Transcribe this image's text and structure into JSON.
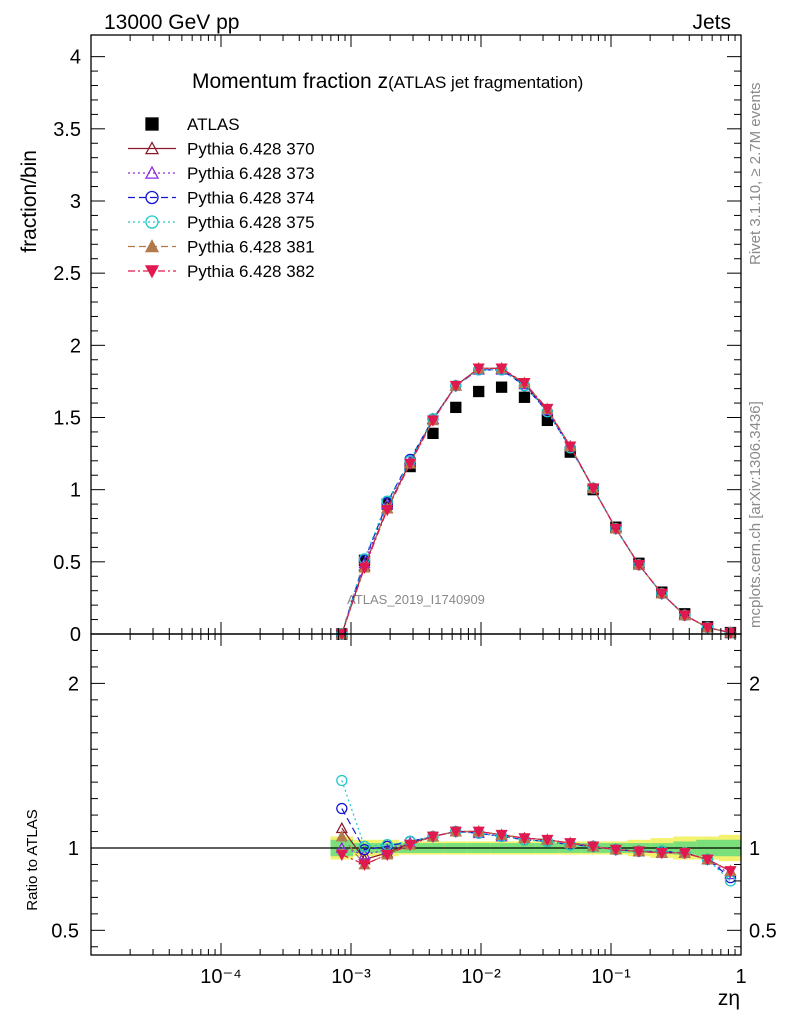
{
  "header": {
    "left": "13000 GeV pp",
    "right": "Jets"
  },
  "side_labels": {
    "rivet": "Rivet 3.1.10, ≥ 2.7M events",
    "mcplots": "mcplots.cern.ch [arXiv:1306.3436]"
  },
  "chart_data": [
    {
      "type": "scatter",
      "panel": "main",
      "title_main": "Momentum fraction z",
      "title_sub": "(ATLAS jet fragmentation)",
      "ylabel": "fraction/bin",
      "xlabel": "zη",
      "watermark": "ATLAS_2019_I1740909",
      "xscale": "log",
      "xlim": [
        1e-05,
        1
      ],
      "ylim": [
        0,
        4.15
      ],
      "x_tick_labels": [
        "10⁻⁴",
        "10⁻³",
        "10⁻²",
        "10⁻¹",
        "1"
      ],
      "y_tick_labels": [
        "0",
        "0.5",
        "1",
        "1.5",
        "2",
        "2.5",
        "3",
        "3.5",
        "4"
      ],
      "legend_position": "top-left",
      "x": [
        0.00085,
        0.00127,
        0.0019,
        0.00285,
        0.00427,
        0.0064,
        0.0096,
        0.0144,
        0.0216,
        0.0324,
        0.0486,
        0.0729,
        0.109,
        0.164,
        0.246,
        0.369,
        0.553,
        0.83
      ],
      "series": [
        {
          "name": "ATLAS",
          "marker": "square-filled",
          "line": "none",
          "color": "#000000",
          "values": [
            0.0,
            0.51,
            0.9,
            1.16,
            1.39,
            1.57,
            1.68,
            1.71,
            1.64,
            1.48,
            1.26,
            1.0,
            0.74,
            0.49,
            0.29,
            0.14,
            0.05,
            0.01
          ]
        },
        {
          "name": "Pythia 6.428 370",
          "marker": "triangle-up-open",
          "line": "solid",
          "color": "#8b1a2b",
          "values": [
            0.0,
            0.47,
            0.87,
            1.19,
            1.49,
            1.72,
            1.84,
            1.84,
            1.73,
            1.55,
            1.3,
            1.01,
            0.73,
            0.48,
            0.28,
            0.13,
            0.045,
            0.009
          ]
        },
        {
          "name": "Pythia 6.428 373",
          "marker": "triangle-up-open",
          "line": "dotted",
          "color": "#8a2be2",
          "values": [
            0.0,
            0.49,
            0.9,
            1.2,
            1.49,
            1.72,
            1.83,
            1.83,
            1.73,
            1.55,
            1.3,
            1.01,
            0.73,
            0.48,
            0.28,
            0.13,
            0.045,
            0.009
          ]
        },
        {
          "name": "Pythia 6.428 374",
          "marker": "circle-open",
          "line": "dashed",
          "color": "#1414d2",
          "values": [
            0.0,
            0.51,
            0.91,
            1.21,
            1.49,
            1.72,
            1.83,
            1.83,
            1.72,
            1.54,
            1.29,
            1.01,
            0.73,
            0.48,
            0.28,
            0.13,
            0.045,
            0.009
          ]
        },
        {
          "name": "Pythia 6.428 375",
          "marker": "circle-open",
          "line": "dotted",
          "color": "#20c8c8",
          "values": [
            0.0,
            0.52,
            0.92,
            1.2,
            1.49,
            1.72,
            1.83,
            1.83,
            1.72,
            1.54,
            1.29,
            1.01,
            0.73,
            0.48,
            0.28,
            0.13,
            0.045,
            0.009
          ]
        },
        {
          "name": "Pythia 6.428 381",
          "marker": "triangle-up-filled",
          "line": "dashed",
          "color": "#b27a4a",
          "values": [
            0.0,
            0.46,
            0.87,
            1.18,
            1.48,
            1.72,
            1.84,
            1.84,
            1.74,
            1.56,
            1.3,
            1.01,
            0.73,
            0.48,
            0.28,
            0.13,
            0.045,
            0.009
          ]
        },
        {
          "name": "Pythia 6.428 382",
          "marker": "triangle-down-filled",
          "line": "dashdot",
          "color": "#e0194e",
          "values": [
            0.0,
            0.46,
            0.86,
            1.18,
            1.48,
            1.72,
            1.84,
            1.84,
            1.74,
            1.56,
            1.3,
            1.01,
            0.73,
            0.48,
            0.28,
            0.13,
            0.045,
            0.009
          ]
        }
      ]
    },
    {
      "type": "line",
      "panel": "ratio",
      "ylabel": "Ratio to ATLAS",
      "xscale": "log",
      "xlim": [
        1e-05,
        1
      ],
      "ylim": [
        0.35,
        2.3
      ],
      "y_tick_labels": [
        "0.5",
        "1",
        "2"
      ],
      "reference_line": 1,
      "band_inner_color": "#7be07b",
      "band_outer_color": "#f2f26e",
      "band_inner": [
        0.05,
        0.03,
        0.03,
        0.03,
        0.03,
        0.03,
        0.03,
        0.03,
        0.03,
        0.03,
        0.03,
        0.03,
        0.03,
        0.03,
        0.03,
        0.04,
        0.05,
        0.05
      ],
      "band_outer": [
        0.07,
        0.05,
        0.05,
        0.04,
        0.04,
        0.04,
        0.04,
        0.04,
        0.04,
        0.04,
        0.04,
        0.04,
        0.04,
        0.05,
        0.06,
        0.07,
        0.07,
        0.08
      ],
      "x": [
        0.00085,
        0.00127,
        0.0019,
        0.00285,
        0.00427,
        0.0064,
        0.0096,
        0.0144,
        0.0216,
        0.0324,
        0.0486,
        0.0729,
        0.109,
        0.164,
        0.246,
        0.369,
        0.553,
        0.83
      ],
      "series": [
        {
          "name": "Pythia 6.428 370",
          "values": [
            1.12,
            0.93,
            0.97,
            1.03,
            1.07,
            1.1,
            1.1,
            1.08,
            1.06,
            1.05,
            1.03,
            1.01,
            0.99,
            0.98,
            0.97,
            0.97,
            0.93,
            0.86
          ]
        },
        {
          "name": "Pythia 6.428 373",
          "values": [
            1.0,
            0.96,
            0.99,
            1.03,
            1.07,
            1.1,
            1.09,
            1.07,
            1.06,
            1.05,
            1.03,
            1.01,
            0.99,
            0.98,
            0.97,
            0.97,
            0.93,
            0.84
          ]
        },
        {
          "name": "Pythia 6.428 374",
          "values": [
            1.24,
            0.99,
            1.01,
            1.04,
            1.07,
            1.1,
            1.09,
            1.07,
            1.05,
            1.04,
            1.02,
            1.01,
            0.99,
            0.98,
            0.98,
            0.97,
            0.93,
            0.82
          ]
        },
        {
          "name": "Pythia 6.428 375",
          "values": [
            1.41,
            1.01,
            1.02,
            1.04,
            1.07,
            1.1,
            1.09,
            1.07,
            1.05,
            1.04,
            1.02,
            1.01,
            0.99,
            0.98,
            0.98,
            0.97,
            0.93,
            0.8
          ]
        },
        {
          "name": "Pythia 6.428 381",
          "values": [
            1.07,
            0.9,
            0.96,
            1.02,
            1.07,
            1.1,
            1.1,
            1.08,
            1.06,
            1.05,
            1.03,
            1.01,
            0.99,
            0.98,
            0.97,
            0.97,
            0.93,
            0.86
          ]
        },
        {
          "name": "Pythia 6.428 382",
          "values": [
            0.96,
            0.9,
            0.96,
            1.02,
            1.07,
            1.1,
            1.1,
            1.08,
            1.06,
            1.05,
            1.03,
            1.01,
            0.99,
            0.98,
            0.97,
            0.97,
            0.93,
            0.86
          ]
        }
      ]
    }
  ]
}
